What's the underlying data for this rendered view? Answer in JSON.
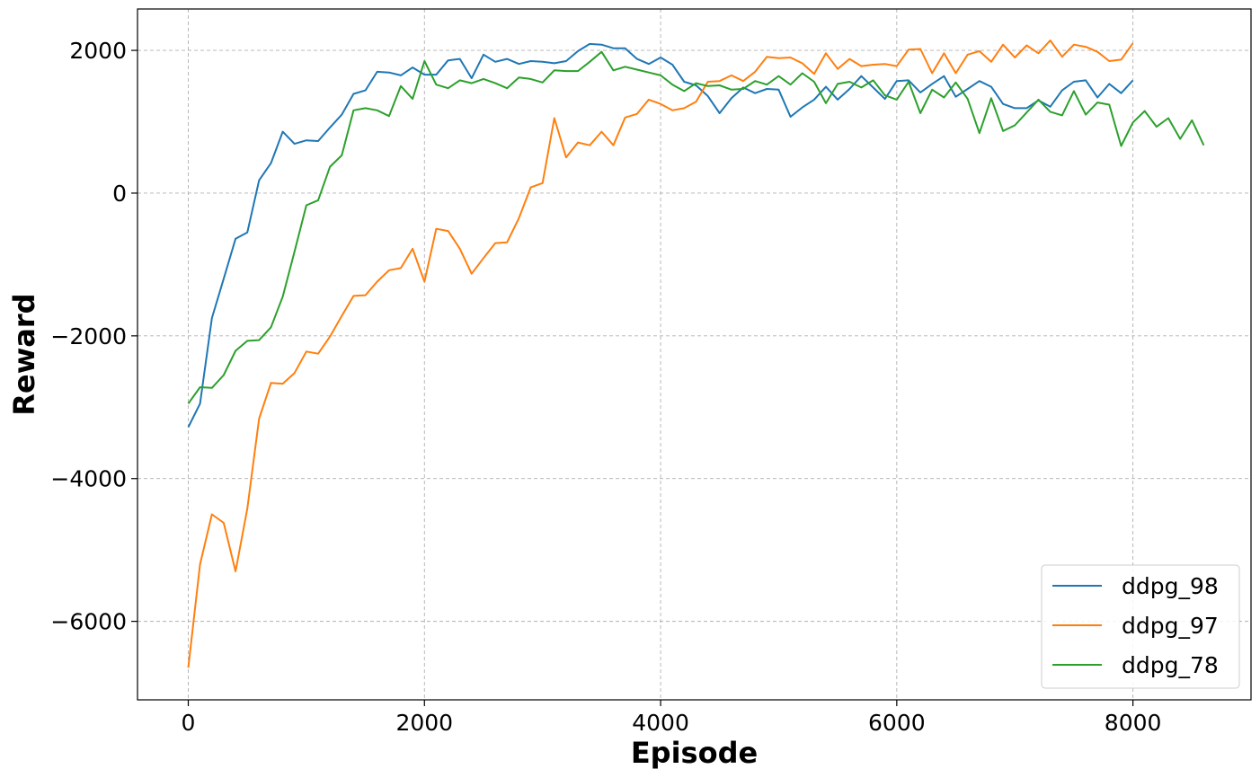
{
  "chart_data": {
    "type": "line",
    "title": "",
    "xlabel": "Episode",
    "ylabel": "Reward",
    "xlim": [
      -430,
      9000
    ],
    "ylim": [
      -7100,
      2580
    ],
    "xticks": [
      0,
      2000,
      4000,
      6000,
      8000
    ],
    "xtick_labels": [
      "0",
      "2000",
      "4000",
      "6000",
      "8000"
    ],
    "yticks": [
      -6000,
      -4000,
      -2000,
      0,
      2000
    ],
    "ytick_labels": [
      "−6000",
      "−4000",
      "−2000",
      "0",
      "2000"
    ],
    "grid": true,
    "legend_position": "lower-right",
    "series": [
      {
        "name": "ddpg_98",
        "color": "#1f77b4",
        "x": [
          0,
          100,
          200,
          300,
          400,
          500,
          600,
          700,
          800,
          900,
          1000,
          1100,
          1200,
          1300,
          1400,
          1500,
          1600,
          1700,
          1800,
          1900,
          2000,
          2100,
          2200,
          2300,
          2400,
          2500,
          2600,
          2700,
          2800,
          2900,
          3000,
          3100,
          3200,
          3300,
          3400,
          3500,
          3600,
          3700,
          3800,
          3900,
          4000,
          4100,
          4200,
          4300,
          4400,
          4500,
          4600,
          4700,
          4800,
          4900,
          5000,
          5100,
          5200,
          5300,
          5400,
          5500,
          5600,
          5700,
          5800,
          5900,
          6000,
          6100,
          6200,
          6300,
          6400,
          6500,
          6600,
          6700,
          6800,
          6900,
          7000,
          7100,
          7200,
          7300,
          7400,
          7500,
          7600,
          7700,
          7800,
          7900,
          8000
        ],
        "y": [
          -3280,
          -2950,
          -1750,
          -1200,
          -640,
          -550,
          180,
          420,
          860,
          690,
          740,
          730,
          920,
          1100,
          1390,
          1440,
          1700,
          1690,
          1650,
          1760,
          1660,
          1660,
          1860,
          1880,
          1610,
          1940,
          1840,
          1880,
          1810,
          1850,
          1840,
          1820,
          1850,
          1990,
          2090,
          2080,
          2030,
          2030,
          1880,
          1810,
          1900,
          1800,
          1560,
          1510,
          1360,
          1120,
          1330,
          1480,
          1400,
          1460,
          1450,
          1070,
          1200,
          1310,
          1490,
          1310,
          1460,
          1640,
          1480,
          1320,
          1570,
          1580,
          1410,
          1530,
          1640,
          1350,
          1460,
          1570,
          1490,
          1250,
          1190,
          1190,
          1300,
          1210,
          1440,
          1560,
          1580,
          1340,
          1530,
          1400,
          1580
        ]
      },
      {
        "name": "ddpg_97",
        "color": "#ff7f0e",
        "x": [
          0,
          100,
          200,
          300,
          400,
          500,
          600,
          700,
          800,
          900,
          1000,
          1100,
          1200,
          1300,
          1400,
          1500,
          1600,
          1700,
          1800,
          1900,
          2000,
          2100,
          2200,
          2300,
          2400,
          2500,
          2600,
          2700,
          2800,
          2900,
          3000,
          3100,
          3200,
          3300,
          3400,
          3500,
          3600,
          3700,
          3800,
          3900,
          4000,
          4100,
          4200,
          4300,
          4400,
          4500,
          4600,
          4700,
          4800,
          4900,
          5000,
          5100,
          5200,
          5300,
          5400,
          5500,
          5600,
          5700,
          5800,
          5900,
          6000,
          6100,
          6200,
          6300,
          6400,
          6500,
          6600,
          6700,
          6800,
          6900,
          7000,
          7100,
          7200,
          7300,
          7400,
          7500,
          7600,
          7700,
          7800,
          7900,
          8000
        ],
        "y": [
          -6650,
          -5200,
          -4500,
          -4620,
          -5300,
          -4420,
          -3160,
          -2660,
          -2670,
          -2520,
          -2220,
          -2250,
          -2010,
          -1720,
          -1440,
          -1430,
          -1240,
          -1080,
          -1050,
          -780,
          -1240,
          -500,
          -530,
          -780,
          -1130,
          -910,
          -700,
          -690,
          -350,
          80,
          140,
          1050,
          500,
          710,
          670,
          860,
          670,
          1060,
          1110,
          1310,
          1250,
          1160,
          1190,
          1280,
          1560,
          1570,
          1650,
          1570,
          1700,
          1910,
          1890,
          1900,
          1820,
          1670,
          1960,
          1740,
          1880,
          1780,
          1800,
          1810,
          1780,
          2010,
          2020,
          1680,
          1960,
          1680,
          1940,
          1990,
          1840,
          2080,
          1900,
          2070,
          1960,
          2140,
          1910,
          2080,
          2050,
          1980,
          1850,
          1870,
          2100
        ]
      },
      {
        "name": "ddpg_78",
        "color": "#2ca02c",
        "x": [
          0,
          100,
          200,
          300,
          400,
          500,
          600,
          700,
          800,
          900,
          1000,
          1100,
          1200,
          1300,
          1400,
          1500,
          1600,
          1700,
          1800,
          1900,
          2000,
          2100,
          2200,
          2300,
          2400,
          2500,
          2600,
          2700,
          2800,
          2900,
          3000,
          3100,
          3200,
          3300,
          3400,
          3500,
          3600,
          3700,
          3800,
          3900,
          4000,
          4100,
          4200,
          4300,
          4400,
          4500,
          4600,
          4700,
          4800,
          4900,
          5000,
          5100,
          5200,
          5300,
          5400,
          5500,
          5600,
          5700,
          5800,
          5900,
          6000,
          6100,
          6200,
          6300,
          6400,
          6500,
          6600,
          6700,
          6800,
          6900,
          7000,
          7100,
          7200,
          7300,
          7400,
          7500,
          7600,
          7700,
          7800,
          7900,
          8000,
          8100,
          8200,
          8300,
          8400,
          8500,
          8600
        ],
        "y": [
          -2950,
          -2720,
          -2730,
          -2550,
          -2210,
          -2070,
          -2060,
          -1880,
          -1450,
          -820,
          -170,
          -100,
          370,
          530,
          1160,
          1190,
          1160,
          1080,
          1500,
          1320,
          1850,
          1520,
          1470,
          1580,
          1540,
          1600,
          1540,
          1470,
          1620,
          1600,
          1550,
          1720,
          1710,
          1710,
          1840,
          1980,
          1720,
          1770,
          1730,
          1690,
          1650,
          1520,
          1430,
          1540,
          1500,
          1510,
          1450,
          1460,
          1570,
          1520,
          1640,
          1520,
          1680,
          1560,
          1260,
          1530,
          1560,
          1480,
          1580,
          1370,
          1310,
          1560,
          1120,
          1450,
          1340,
          1550,
          1320,
          840,
          1330,
          870,
          950,
          1130,
          1310,
          1140,
          1090,
          1430,
          1100,
          1270,
          1240,
          660,
          990,
          1150,
          930,
          1050,
          760,
          1020,
          670
        ]
      }
    ]
  }
}
